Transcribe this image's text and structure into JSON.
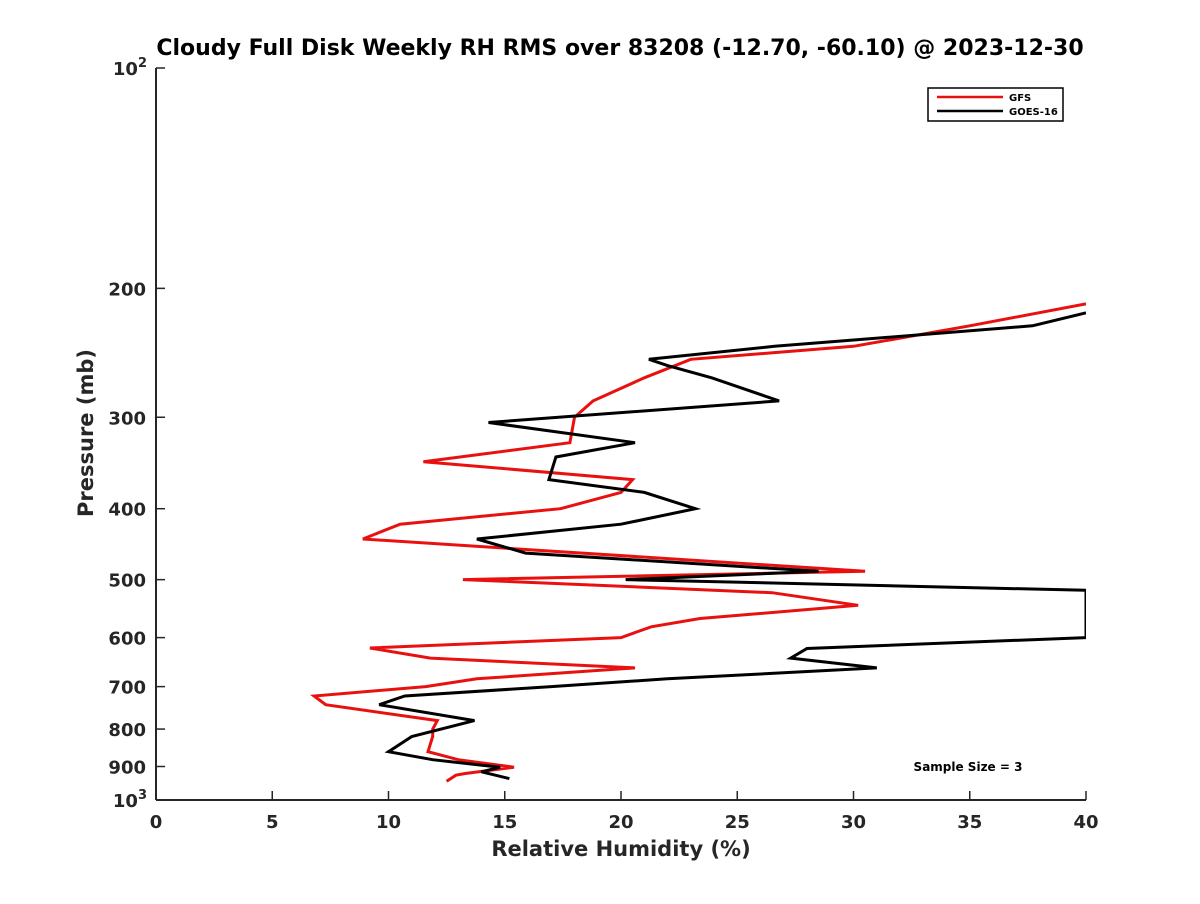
{
  "chart_data": {
    "type": "line",
    "title": "Cloudy Full Disk Weekly RH RMS over 83208 (-12.70, -60.10) @ 2023-12-30",
    "xlabel": "Relative Humidity (%)",
    "ylabel": "Pressure (mb)",
    "xlim": [
      0,
      40
    ],
    "ylim": [
      100,
      1000
    ],
    "yscale": "log",
    "y_reversed": true,
    "grid": false,
    "x_ticks": [
      0,
      5,
      10,
      15,
      20,
      25,
      30,
      35,
      40
    ],
    "x_tick_labels": [
      "0",
      "5",
      "10",
      "15",
      "20",
      "25",
      "30",
      "35",
      "40"
    ],
    "y_ticks": [
      100,
      200,
      300,
      400,
      500,
      600,
      700,
      800,
      900,
      1000
    ],
    "y_tick_labels": [
      {
        "base": "10",
        "exp": "2"
      },
      {
        "base": "200",
        "exp": ""
      },
      {
        "base": "300",
        "exp": ""
      },
      {
        "base": "400",
        "exp": ""
      },
      {
        "base": "500",
        "exp": ""
      },
      {
        "base": "600",
        "exp": ""
      },
      {
        "base": "700",
        "exp": ""
      },
      {
        "base": "800",
        "exp": ""
      },
      {
        "base": "900",
        "exp": ""
      },
      {
        "base": "10",
        "exp": "3"
      }
    ],
    "legend": {
      "position": "top-right",
      "entries": [
        "GFS",
        "GOES-16"
      ]
    },
    "annotation": "Sample Size = 3",
    "series": [
      {
        "name": "GFS",
        "color": "#e8110f",
        "points": [
          [
            40,
            210
          ],
          [
            35,
            225
          ],
          [
            30,
            240
          ],
          [
            23,
            250
          ],
          [
            21,
            265
          ],
          [
            18.8,
            285
          ],
          [
            18,
            300
          ],
          [
            17.8,
            325
          ],
          [
            11.5,
            345
          ],
          [
            20.5,
            365
          ],
          [
            20,
            380
          ],
          [
            17.4,
            400
          ],
          [
            10.5,
            420
          ],
          [
            8.9,
            440
          ],
          [
            30.5,
            487
          ],
          [
            13.2,
            500
          ],
          [
            26.5,
            521
          ],
          [
            30.2,
            542
          ],
          [
            23.4,
            565
          ],
          [
            21.3,
            580
          ],
          [
            20,
            600
          ],
          [
            9.2,
            620
          ],
          [
            11.8,
            640
          ],
          [
            20.6,
            660
          ],
          [
            13.8,
            683
          ],
          [
            11.6,
            700
          ],
          [
            6.8,
            721
          ],
          [
            7.3,
            741
          ],
          [
            12.1,
            779
          ],
          [
            11.9,
            800
          ],
          [
            11.9,
            819
          ],
          [
            11.7,
            859
          ],
          [
            13,
            881
          ],
          [
            15.4,
            902
          ],
          [
            13.3,
            920
          ],
          [
            12.9,
            925
          ],
          [
            12.5,
            943
          ]
        ]
      },
      {
        "name": "GOES-16",
        "color": "#000000",
        "points": [
          [
            40,
            216
          ],
          [
            37.7,
            225
          ],
          [
            26.6,
            240
          ],
          [
            21.2,
            250
          ],
          [
            22,
            255
          ],
          [
            23.9,
            265
          ],
          [
            26.8,
            285
          ],
          [
            14.3,
            305
          ],
          [
            20.6,
            325
          ],
          [
            17.2,
            340
          ],
          [
            16.9,
            365
          ],
          [
            21,
            380
          ],
          [
            23.2,
            400
          ],
          [
            20,
            420
          ],
          [
            13.8,
            440
          ],
          [
            15.9,
            460
          ],
          [
            28.5,
            487
          ],
          [
            20.2,
            500
          ],
          [
            40,
            517
          ],
          [
            40,
            600
          ],
          [
            28,
            621
          ],
          [
            27.3,
            640
          ],
          [
            31,
            660
          ],
          [
            22,
            683
          ],
          [
            17,
            700
          ],
          [
            10.7,
            721
          ],
          [
            9.6,
            741
          ],
          [
            13.7,
            779
          ],
          [
            11,
            819
          ],
          [
            10,
            859
          ],
          [
            11.9,
            881
          ],
          [
            14.8,
            902
          ],
          [
            14,
            915
          ],
          [
            15.2,
            935
          ]
        ]
      }
    ]
  }
}
